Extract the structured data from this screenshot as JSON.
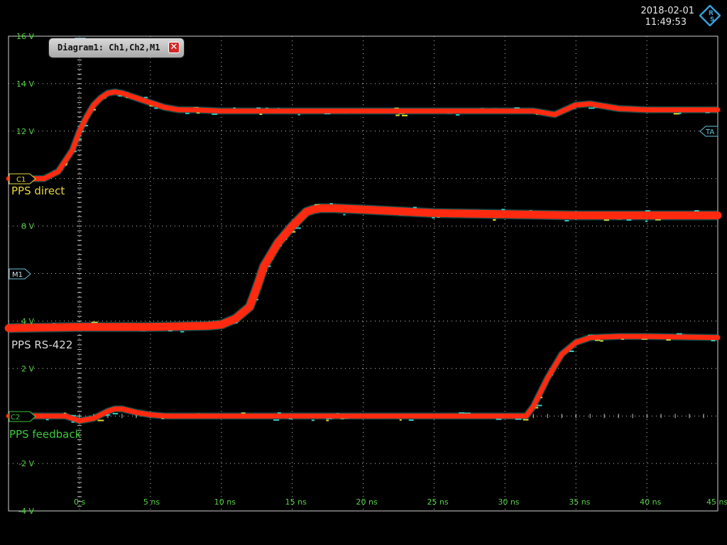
{
  "header": {
    "date": "2018-02-01",
    "time": "11:49:53",
    "logo": "rohde-schwarz-logo"
  },
  "diagram_tab": {
    "label": "Diagram1: Ch1,Ch2,M1",
    "close_icon": "close-icon"
  },
  "colors": {
    "grid": "#c8c8c8",
    "tick_label": "#59d24a",
    "trace": "#ff2a10",
    "persistence_cyan": "#35c9c4",
    "persistence_yellow": "#e8e030",
    "ch1_marker": "#e8d840",
    "ch2_marker": "#3cc83c",
    "m1_marker": "#69c6dc",
    "ta_marker": "#69c6dc"
  },
  "markers": {
    "c1": "C1",
    "c2": "C2",
    "m1": "M1",
    "ta": "TA"
  },
  "trace_labels": {
    "ch1": "PPS direct",
    "m1": "PPS RS-422",
    "ch2": "PPS feedback"
  },
  "chart_data": {
    "type": "line",
    "xlabel": "",
    "ylabel": "",
    "xlim": [
      -5,
      45
    ],
    "ylim": [
      -4,
      16
    ],
    "x_ticks": [
      "0 s",
      "5 ns",
      "10 ns",
      "15 ns",
      "20 ns",
      "25 ns",
      "30 ns",
      "35 ns",
      "40 ns",
      "45 ns"
    ],
    "y_ticks": [
      "16 V",
      "14 V",
      "12 V",
      "",
      "8 V",
      "",
      "4 V",
      "2 V",
      "",
      "-2 V",
      "-4 V"
    ],
    "grid": true,
    "series": [
      {
        "name": "PPS direct",
        "x": [
          -5,
          -3.5,
          -2.5,
          -1.5,
          -0.5,
          0,
          0.5,
          1,
          1.5,
          2,
          2.5,
          3,
          4,
          5,
          6,
          7,
          8,
          10,
          15,
          20,
          25,
          30,
          32,
          33.5,
          35,
          36,
          38,
          40,
          45
        ],
        "y": [
          10,
          10,
          10,
          10.3,
          11.2,
          12,
          12.6,
          13.1,
          13.4,
          13.6,
          13.65,
          13.6,
          13.4,
          13.2,
          13.0,
          12.9,
          12.9,
          12.85,
          12.85,
          12.85,
          12.85,
          12.85,
          12.85,
          12.7,
          13.1,
          13.15,
          12.95,
          12.9,
          12.9
        ]
      },
      {
        "name": "PPS RS-422",
        "x": [
          -5,
          0,
          5,
          9,
          10,
          11,
          12,
          12.5,
          13,
          14,
          15,
          16,
          16.5,
          17,
          18,
          20,
          25,
          30,
          35,
          40,
          45
        ],
        "y": [
          3.7,
          3.75,
          3.75,
          3.8,
          3.85,
          4.1,
          4.6,
          5.4,
          6.3,
          7.3,
          8.0,
          8.6,
          8.7,
          8.75,
          8.75,
          8.7,
          8.55,
          8.5,
          8.45,
          8.45,
          8.45
        ]
      },
      {
        "name": "PPS feedback",
        "x": [
          -5,
          -1,
          0,
          1,
          2,
          2.5,
          3,
          4,
          5,
          6,
          10,
          15,
          20,
          25,
          30,
          31.5,
          32,
          33,
          34,
          35,
          36,
          38,
          40,
          45
        ],
        "y": [
          0,
          0,
          -0.2,
          -0.1,
          0.2,
          0.3,
          0.3,
          0.15,
          0.05,
          0,
          0,
          0,
          0,
          0,
          0,
          0,
          0.4,
          1.6,
          2.6,
          3.1,
          3.3,
          3.35,
          3.35,
          3.3
        ]
      }
    ]
  }
}
